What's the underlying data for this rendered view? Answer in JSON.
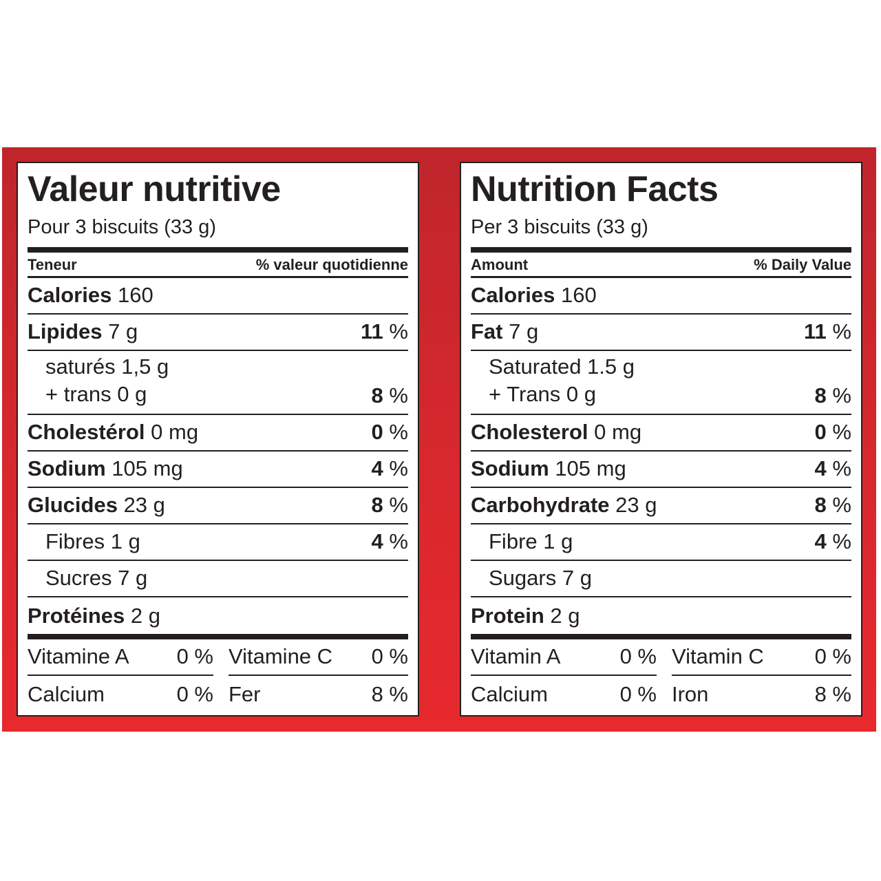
{
  "colors": {
    "band_top": "#bf252b",
    "band_bottom": "#e8292e",
    "text": "#231f20"
  },
  "french": {
    "title": "Valeur nutritive",
    "serving": "Pour 3 biscuits (33 g)",
    "header_left": "Teneur",
    "header_right": "% valeur quotidienne",
    "rows": [
      {
        "name": "Calories",
        "amount": "160",
        "pct": "",
        "pct_unit": ""
      },
      {
        "name": "Lipides",
        "amount": "7 g",
        "pct": "11",
        "pct_unit": "%"
      },
      {
        "line1": "saturés 1,5 g",
        "line2": "+ trans 0 g",
        "pct": "8",
        "pct_unit": "%"
      },
      {
        "name": "Cholestérol",
        "amount": "0 mg",
        "pct": "0",
        "pct_unit": "%"
      },
      {
        "name": "Sodium",
        "amount": "105 mg",
        "pct": "4",
        "pct_unit": "%"
      },
      {
        "name": "Glucides",
        "amount": "23 g",
        "pct": "8",
        "pct_unit": "%"
      },
      {
        "sub": "Fibres 1 g",
        "pct": "4",
        "pct_unit": "%"
      },
      {
        "sub": "Sucres 7 g",
        "pct": "",
        "pct_unit": ""
      },
      {
        "name": "Protéines",
        "amount": "2 g",
        "pct": "",
        "pct_unit": ""
      }
    ],
    "vitamins": [
      {
        "name": "Vitamine A",
        "pct": "0 %"
      },
      {
        "name": "Vitamine C",
        "pct": "0 %"
      },
      {
        "name": "Calcium",
        "pct": "0 %"
      },
      {
        "name": "Fer",
        "pct": "8 %"
      }
    ]
  },
  "english": {
    "title": "Nutrition Facts",
    "serving": "Per 3 biscuits (33 g)",
    "header_left": "Amount",
    "header_right": "% Daily Value",
    "rows": [
      {
        "name": "Calories",
        "amount": "160",
        "pct": "",
        "pct_unit": ""
      },
      {
        "name": "Fat",
        "amount": "7 g",
        "pct": "11",
        "pct_unit": "%"
      },
      {
        "line1": "Saturated 1.5 g",
        "line2": "+ Trans 0 g",
        "pct": "8",
        "pct_unit": "%"
      },
      {
        "name": "Cholesterol",
        "amount": "0 mg",
        "pct": "0",
        "pct_unit": "%"
      },
      {
        "name": "Sodium",
        "amount": "105 mg",
        "pct": "4",
        "pct_unit": "%"
      },
      {
        "name": "Carbohydrate",
        "amount": "23 g",
        "pct": "8",
        "pct_unit": "%"
      },
      {
        "sub": "Fibre 1 g",
        "pct": "4",
        "pct_unit": "%"
      },
      {
        "sub": "Sugars 7 g",
        "pct": "",
        "pct_unit": ""
      },
      {
        "name": "Protein",
        "amount": "2 g",
        "pct": "",
        "pct_unit": ""
      }
    ],
    "vitamins": [
      {
        "name": "Vitamin A",
        "pct": "0 %"
      },
      {
        "name": "Vitamin C",
        "pct": "0 %"
      },
      {
        "name": "Calcium",
        "pct": "0 %"
      },
      {
        "name": "Iron",
        "pct": "8 %"
      }
    ]
  }
}
